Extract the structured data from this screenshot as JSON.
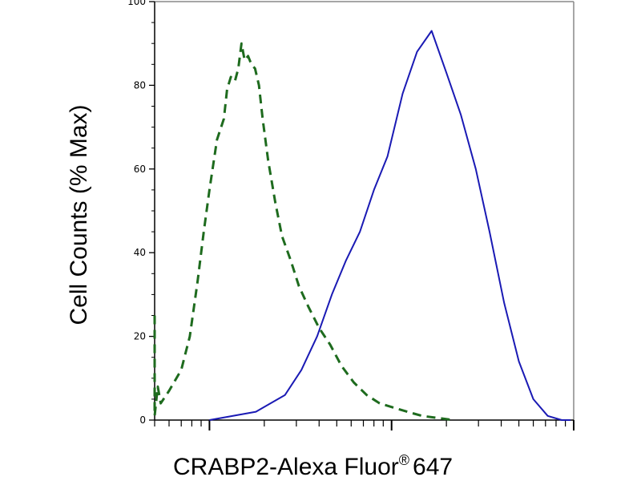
{
  "chart_data": {
    "type": "line",
    "title": "",
    "xlabel": "CRABP2-Alexa Fluor",
    "xlabel_superscript": "®",
    "xlabel_suffix": "647",
    "ylabel": "Cell Counts (% Max)",
    "x_scale": "log",
    "xlim": [
      0.5,
      100
    ],
    "ylim": [
      0,
      100
    ],
    "y_ticks": [
      {
        "value": 0,
        "label": "0"
      },
      {
        "value": 20,
        "label": "20"
      },
      {
        "value": 40,
        "label": "40"
      },
      {
        "value": 60,
        "label": "60"
      },
      {
        "value": 80,
        "label": "80"
      },
      {
        "value": 100,
        "label": "100"
      }
    ],
    "grid": false,
    "legend": "none",
    "series": [
      {
        "style": "dashed",
        "color": "#1e6b1e",
        "x": [
          0.5,
          0.5,
          0.52,
          0.54,
          0.6,
          0.7,
          0.78,
          0.86,
          0.93,
          1.0,
          1.1,
          1.2,
          1.25,
          1.31,
          1.38,
          1.44,
          1.5,
          1.56,
          1.63,
          1.7,
          1.78,
          1.87,
          1.96,
          2.1,
          2.3,
          2.5,
          2.8,
          3.1,
          3.5,
          4.0,
          4.6,
          5.3,
          6.2,
          7.3,
          8.6,
          10.2,
          12.2,
          14.7,
          18.0,
          22.0
        ],
        "y": [
          25,
          1,
          8,
          4,
          7,
          12,
          20,
          33,
          45,
          55,
          67,
          72,
          79,
          82,
          81,
          84,
          90,
          86,
          87,
          85,
          84,
          80,
          72,
          62,
          52,
          44,
          38,
          32,
          27,
          22,
          18,
          13,
          9,
          6,
          4,
          3,
          2,
          1,
          0.5,
          0
        ]
      },
      {
        "style": "solid",
        "color": "#1a1ab4",
        "x": [
          1.0,
          1.8,
          2.6,
          3.2,
          3.9,
          4.7,
          5.6,
          6.7,
          8.0,
          9.5,
          11.5,
          13.8,
          16.6,
          20.0,
          24.0,
          29.0,
          34.5,
          41.5,
          50.0,
          60.0,
          72.0,
          86.0,
          96.0
        ],
        "y": [
          0,
          2,
          6,
          12,
          20,
          30,
          38,
          45,
          55,
          63,
          78,
          88,
          93,
          83,
          73,
          60,
          45,
          28,
          14,
          5,
          1,
          0,
          0
        ]
      }
    ]
  }
}
